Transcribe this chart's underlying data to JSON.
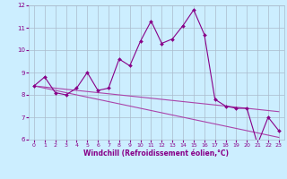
{
  "x": [
    0,
    1,
    2,
    3,
    4,
    5,
    6,
    7,
    8,
    9,
    10,
    11,
    12,
    13,
    14,
    15,
    16,
    17,
    18,
    19,
    20,
    21,
    22,
    23
  ],
  "line1": [
    8.4,
    8.8,
    8.1,
    8.0,
    8.3,
    9.0,
    8.2,
    8.3,
    9.6,
    9.3,
    10.4,
    11.3,
    10.3,
    10.5,
    11.1,
    11.8,
    10.7,
    7.8,
    7.5,
    7.4,
    7.4,
    5.8,
    7.0,
    6.4
  ],
  "trend1": [
    8.4,
    8.35,
    8.3,
    8.25,
    8.2,
    8.15,
    8.1,
    8.05,
    8.0,
    7.95,
    7.9,
    7.85,
    7.8,
    7.75,
    7.7,
    7.65,
    7.6,
    7.55,
    7.5,
    7.45,
    7.4,
    7.35,
    7.3,
    7.25
  ],
  "trend2": [
    8.4,
    8.3,
    8.2,
    8.1,
    8.0,
    7.9,
    7.8,
    7.7,
    7.6,
    7.5,
    7.4,
    7.3,
    7.2,
    7.1,
    7.0,
    6.9,
    6.8,
    6.7,
    6.6,
    6.5,
    6.4,
    6.3,
    6.2,
    6.1
  ],
  "background_color": "#cceeff",
  "grid_color": "#aabbcc",
  "line_color": "#880088",
  "line_color2": "#aa44aa",
  "xlabel": "Windchill (Refroidissement éolien,°C)",
  "ylim": [
    6,
    12
  ],
  "xlim": [
    -0.5,
    23.5
  ],
  "yticks": [
    6,
    7,
    8,
    9,
    10,
    11,
    12
  ],
  "xticks": [
    0,
    1,
    2,
    3,
    4,
    5,
    6,
    7,
    8,
    9,
    10,
    11,
    12,
    13,
    14,
    15,
    16,
    17,
    18,
    19,
    20,
    21,
    22,
    23
  ]
}
